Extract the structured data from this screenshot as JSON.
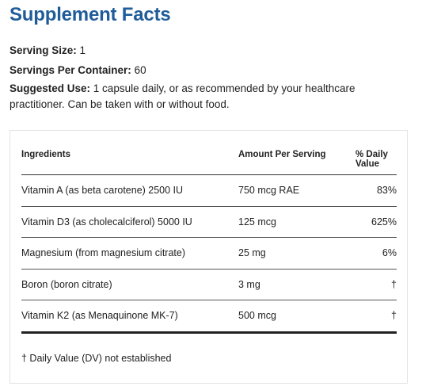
{
  "title": "Supplement Facts",
  "serving_size": {
    "label": "Serving Size:",
    "value": "1"
  },
  "servings_per_container": {
    "label": "Servings Per Container:",
    "value": "60"
  },
  "suggested_use": {
    "label": "Suggested Use:",
    "value": "1 capsule daily, or as recommended by your healthcare practitioner. Can be taken with or without food."
  },
  "table": {
    "headers": {
      "ingredients": "Ingredients",
      "amount": "Amount Per Serving",
      "daily_value_line1": "% Daily",
      "daily_value_line2": "Value"
    },
    "rows": [
      {
        "ingredient": "Vitamin A (as beta carotene) 2500 IU",
        "amount": "750 mcg RAE",
        "dv": "83%"
      },
      {
        "ingredient": "Vitamin D3 (as cholecalciferol) 5000 IU",
        "amount": "125 mcg",
        "dv": "625%"
      },
      {
        "ingredient": "Magnesium (from magnesium citrate)",
        "amount": "25 mg",
        "dv": "6%"
      },
      {
        "ingredient": "Boron (boron citrate)",
        "amount": "3 mg",
        "dv": "†"
      },
      {
        "ingredient": "Vitamin K2 (as Menaquinone MK-7)",
        "amount": "500 mcg",
        "dv": "†"
      }
    ]
  },
  "footnote": "† Daily Value (DV) not established"
}
